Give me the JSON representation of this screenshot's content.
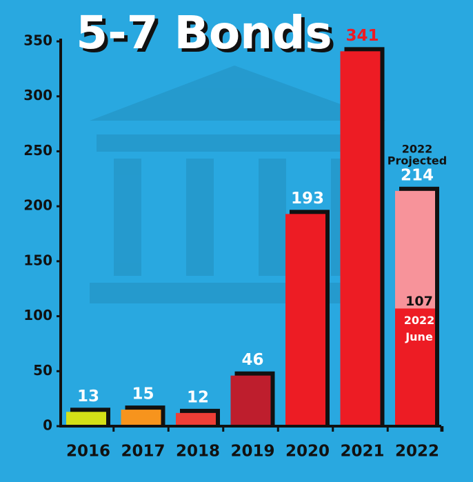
{
  "chart_data": {
    "type": "bar",
    "title": "5-7 Bonds",
    "categories": [
      "2016",
      "2017",
      "2018",
      "2019",
      "2020",
      "2021",
      "2022"
    ],
    "values": [
      13,
      15,
      12,
      46,
      193,
      341,
      214
    ],
    "colors": [
      "#d4e017",
      "#f7941d",
      "#ef3e36",
      "#be1e2d",
      "#ed1c24",
      "#ed1c24",
      "#f7939a"
    ],
    "value_label_colors": [
      "#ffffff",
      "#ffffff",
      "#ffffff",
      "#ffffff",
      "#ffffff",
      "#ed1c24",
      "#ffffff"
    ],
    "overlay": {
      "values": [
        null,
        null,
        null,
        null,
        null,
        null,
        107
      ],
      "color": "#ed1c24",
      "value_label_color": "#111111",
      "label": [
        "2022",
        "June"
      ]
    },
    "annotation": [
      "2022",
      "Projected"
    ],
    "ylim": [
      0,
      350
    ],
    "yticks": [
      0,
      50,
      100,
      150,
      200,
      250,
      300,
      350
    ]
  }
}
